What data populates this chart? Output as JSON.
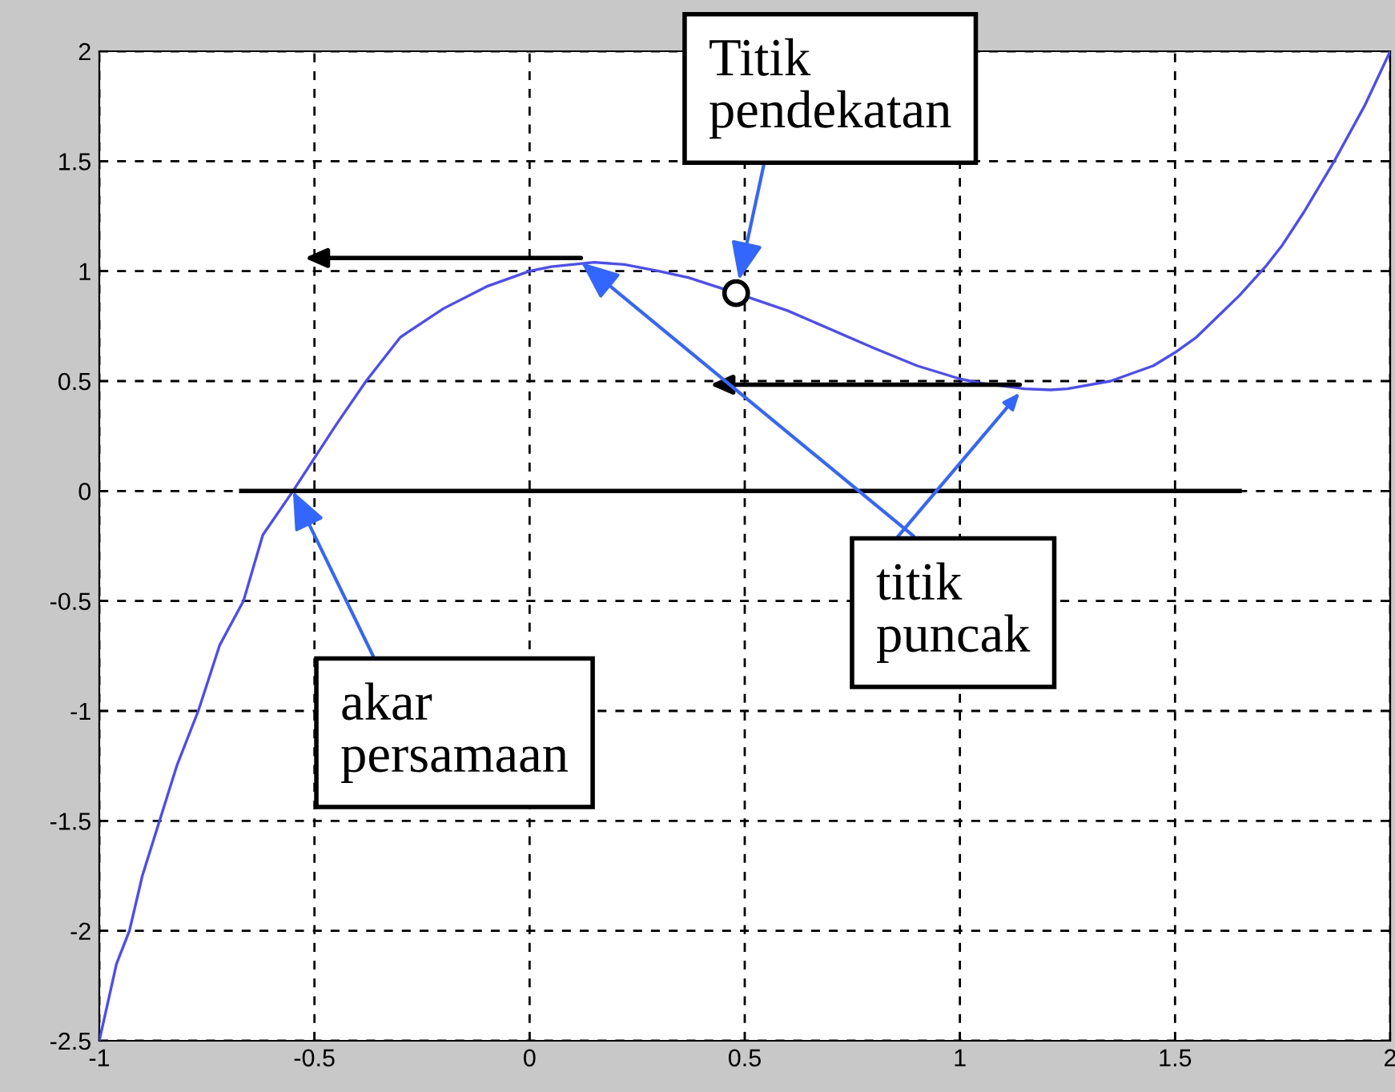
{
  "chart_data": {
    "type": "line",
    "xlim": [
      -1,
      2
    ],
    "ylim": [
      -2.5,
      2
    ],
    "xticks": [
      -1,
      -0.5,
      0,
      0.5,
      1,
      1.5,
      2
    ],
    "yticks": [
      -2.5,
      -2,
      -1.5,
      -1,
      -0.5,
      0,
      0.5,
      1,
      1.5,
      2
    ],
    "grid": true,
    "series": [
      {
        "color": "#4a4aff",
        "x": [
          -1,
          -0.96,
          -0.93,
          -0.9,
          -0.86,
          -0.82,
          -0.77,
          -0.72,
          -0.665,
          -0.62,
          -0.55,
          -0.45,
          -0.38,
          -0.3,
          -0.2,
          -0.1,
          0,
          0.05,
          0.15,
          0.22,
          0.3,
          0.37,
          0.48,
          0.6,
          0.8,
          0.9,
          1,
          1.05,
          1.15,
          1.21,
          1.25,
          1.35,
          1.45,
          1.5,
          1.55,
          1.65,
          1.71,
          1.75,
          1.8,
          1.87,
          1.94,
          2
        ],
        "values": [
          -2.5,
          -2.15,
          -2,
          -1.75,
          -1.5,
          -1.25,
          -1,
          -0.7,
          -0.5,
          -0.2,
          0,
          0.3,
          0.5,
          0.7,
          0.83,
          0.93,
          1,
          1.02,
          1.04,
          1.03,
          1.0,
          0.97,
          0.9,
          0.82,
          0.65,
          0.57,
          0.51,
          0.49,
          0.465,
          0.46,
          0.465,
          0.5,
          0.57,
          0.63,
          0.7,
          0.89,
          1.02,
          1.12,
          1.27,
          1.5,
          1.75,
          2
        ]
      },
      {
        "type": "line",
        "color": "#000000",
        "x": [
          -0.67,
          1.65
        ],
        "values": [
          0,
          0
        ]
      },
      {
        "type": "scatter",
        "color": "#000000",
        "x": [
          0.48
        ],
        "values": [
          0.9
        ]
      }
    ],
    "annotations": [
      {
        "text": "Titik\npendekatan",
        "x": 0.48,
        "y": 0.9
      },
      {
        "text": "titik\npuncak",
        "x": 0.12,
        "y": 1.04
      },
      {
        "text": "akar\npersamaan",
        "x": -0.55,
        "y": 0
      }
    ]
  }
}
